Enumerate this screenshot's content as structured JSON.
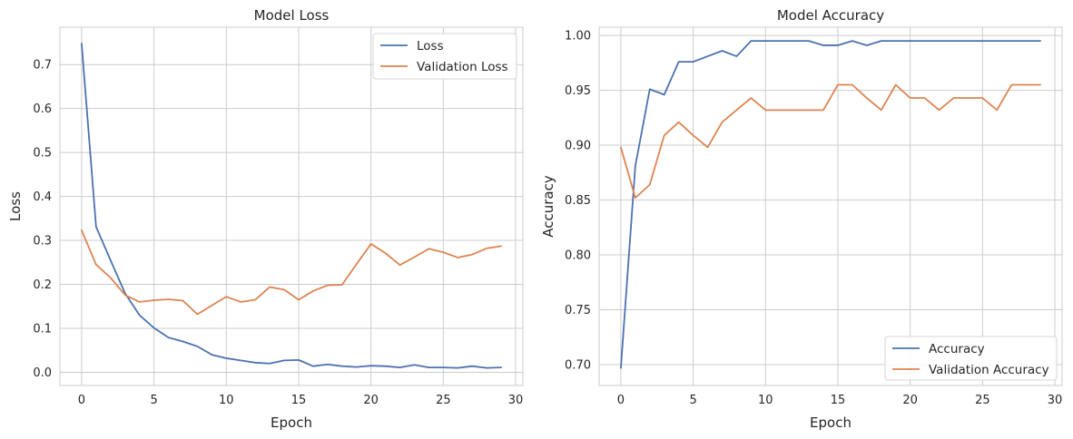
{
  "chart_data": [
    {
      "type": "line",
      "title": "Model Loss",
      "xlabel": "Epoch",
      "ylabel": "Loss",
      "xlim": [
        -1.5,
        30.5
      ],
      "ylim": [
        -0.03,
        0.785
      ],
      "xticks": [
        0,
        5,
        10,
        15,
        20,
        25,
        30
      ],
      "yticks": [
        0.0,
        0.1,
        0.2,
        0.3,
        0.4,
        0.5,
        0.6,
        0.7
      ],
      "ytick_decimals": 1,
      "grid": true,
      "legend_position": "top-right",
      "x": [
        0,
        1,
        2,
        3,
        4,
        5,
        6,
        7,
        8,
        9,
        10,
        11,
        12,
        13,
        14,
        15,
        16,
        17,
        18,
        19,
        20,
        21,
        22,
        23,
        24,
        25,
        26,
        27,
        28,
        29
      ],
      "series": [
        {
          "name": "Loss",
          "color": "#4c72b0",
          "values": [
            0.748,
            0.331,
            0.255,
            0.18,
            0.13,
            0.101,
            0.079,
            0.07,
            0.059,
            0.04,
            0.032,
            0.027,
            0.022,
            0.02,
            0.027,
            0.028,
            0.014,
            0.018,
            0.014,
            0.012,
            0.015,
            0.014,
            0.011,
            0.017,
            0.011,
            0.011,
            0.01,
            0.014,
            0.01,
            0.011
          ]
        },
        {
          "name": "Validation Loss",
          "color": "#dd8452",
          "values": [
            0.323,
            0.245,
            0.215,
            0.176,
            0.16,
            0.164,
            0.166,
            0.163,
            0.132,
            0.152,
            0.172,
            0.16,
            0.165,
            0.194,
            0.188,
            0.165,
            0.185,
            0.198,
            0.199,
            0.246,
            0.292,
            0.271,
            0.244,
            0.262,
            0.281,
            0.273,
            0.261,
            0.268,
            0.282,
            0.287
          ]
        }
      ]
    },
    {
      "type": "line",
      "title": "Model Accuracy",
      "xlabel": "Epoch",
      "ylabel": "Accuracy",
      "xlim": [
        -1.5,
        30.5
      ],
      "ylim": [
        0.681,
        1.0075
      ],
      "xticks": [
        0,
        5,
        10,
        15,
        20,
        25,
        30
      ],
      "yticks": [
        0.7,
        0.75,
        0.8,
        0.85,
        0.9,
        0.95,
        1.0
      ],
      "ytick_decimals": 2,
      "grid": true,
      "legend_position": "bottom-right",
      "x": [
        0,
        1,
        2,
        3,
        4,
        5,
        6,
        7,
        8,
        9,
        10,
        11,
        12,
        13,
        14,
        15,
        16,
        17,
        18,
        19,
        20,
        21,
        22,
        23,
        24,
        25,
        26,
        27,
        28,
        29
      ],
      "series": [
        {
          "name": "Accuracy",
          "color": "#4c72b0",
          "values": [
            0.697,
            0.881,
            0.951,
            0.946,
            0.976,
            0.976,
            0.981,
            0.986,
            0.981,
            0.995,
            0.995,
            0.995,
            0.995,
            0.995,
            0.991,
            0.991,
            0.995,
            0.991,
            0.995,
            0.995,
            0.995,
            0.995,
            0.995,
            0.995,
            0.995,
            0.995,
            0.995,
            0.995,
            0.995,
            0.995
          ]
        },
        {
          "name": "Validation Accuracy",
          "color": "#dd8452",
          "values": [
            0.898,
            0.852,
            0.864,
            0.909,
            0.921,
            0.909,
            0.898,
            0.921,
            0.932,
            0.943,
            0.932,
            0.932,
            0.932,
            0.932,
            0.932,
            0.955,
            0.955,
            0.943,
            0.932,
            0.955,
            0.943,
            0.943,
            0.932,
            0.943,
            0.943,
            0.943,
            0.932,
            0.955,
            0.955,
            0.955
          ]
        }
      ]
    }
  ]
}
